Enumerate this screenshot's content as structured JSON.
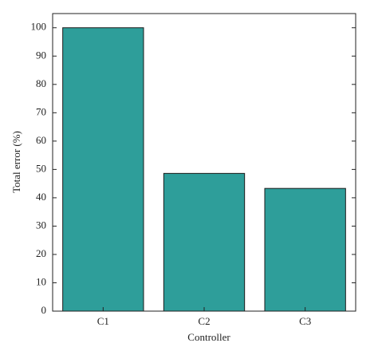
{
  "chart_data": {
    "type": "bar",
    "x_label": "Controller",
    "y_label": "Total error (%)",
    "categories": [
      "C1",
      "C2",
      "C3"
    ],
    "values": [
      100,
      48.6,
      43.3
    ],
    "color": "#2e9e9a",
    "ylim": [
      0,
      105
    ],
    "yticks": [
      0,
      10,
      20,
      30,
      40,
      50,
      60,
      70,
      80,
      90,
      100
    ]
  }
}
